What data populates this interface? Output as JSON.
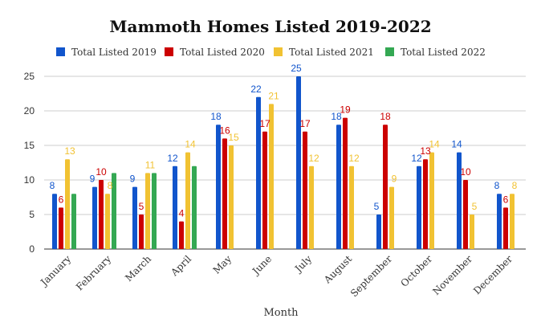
{
  "chart_data": {
    "type": "bar",
    "title": "Mammoth Homes Listed 2019-2022",
    "xlabel": "Month",
    "ylabel": "",
    "ylim": [
      0,
      25
    ],
    "yticks": [
      "0",
      "5",
      "10",
      "15",
      "20",
      "25"
    ],
    "grid": true,
    "legend_position": "top",
    "categories": [
      "January",
      "February",
      "March",
      "April",
      "May",
      "June",
      "July",
      "August",
      "September",
      "October",
      "November",
      "December"
    ],
    "series": [
      {
        "name": "Total Listed 2019",
        "color": "#1155cc",
        "values": [
          8,
          9,
          9,
          12,
          18,
          22,
          25,
          18,
          5,
          12,
          14,
          8
        ]
      },
      {
        "name": "Total Listed 2020",
        "color": "#cc0000",
        "values": [
          6,
          10,
          5,
          4,
          16,
          17,
          17,
          19,
          18,
          13,
          10,
          6
        ]
      },
      {
        "name": "Total Listed 2021",
        "color": "#f1c232",
        "values": [
          13,
          8,
          11,
          14,
          15,
          21,
          12,
          12,
          9,
          14,
          5,
          8
        ]
      },
      {
        "name": "Total Listed 2022",
        "color": "#34a853",
        "values": [
          8,
          11,
          11,
          12,
          null,
          null,
          null,
          null,
          null,
          null,
          null,
          null
        ]
      }
    ]
  }
}
